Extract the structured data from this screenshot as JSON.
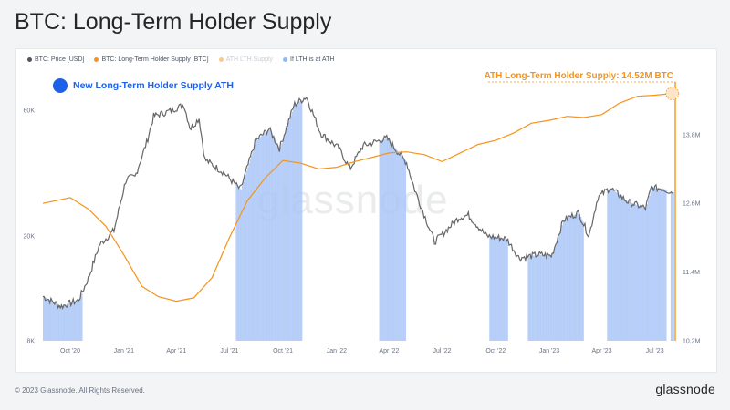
{
  "title": "BTC: Long-Term Holder Supply",
  "legend": [
    {
      "label": "BTC: Price [USD]",
      "color": "#555555",
      "faded": false
    },
    {
      "label": "BTC: Long-Term Holder Supply [BTC]",
      "color": "#f7931a",
      "faded": false
    },
    {
      "label": "ATH LTH Supply",
      "color": "#f7c98c",
      "faded": true
    },
    {
      "label": "If LTH is at ATH",
      "color": "#93b8f5",
      "faded": false
    }
  ],
  "badge_text": "New Long-Term Holder Supply ATH",
  "ath_label": "ATH Long-Term Holder Supply: 14.52M BTC",
  "watermark": "glassnode",
  "footer": {
    "copyright": "© 2023 Glassnode. All Rights Reserved.",
    "brand": "glassnode"
  },
  "colors": {
    "price": "#666666",
    "supply": "#f7931a",
    "ath_bars": "#a9c6f7",
    "ath_line": "#f7931a"
  },
  "chart_data": {
    "type": "line",
    "x_range": [
      "2020-08-15",
      "2023-08-05"
    ],
    "x_ticks": [
      {
        "label": "Oct '20",
        "date": "2020-10-01"
      },
      {
        "label": "Jan '21",
        "date": "2021-01-01"
      },
      {
        "label": "Apr '21",
        "date": "2021-04-01"
      },
      {
        "label": "Jul '21",
        "date": "2021-07-01"
      },
      {
        "label": "Oct '21",
        "date": "2021-10-01"
      },
      {
        "label": "Jan '22",
        "date": "2022-01-01"
      },
      {
        "label": "Apr '22",
        "date": "2022-04-01"
      },
      {
        "label": "Jul '22",
        "date": "2022-07-01"
      },
      {
        "label": "Oct '22",
        "date": "2022-10-01"
      },
      {
        "label": "Jan '23",
        "date": "2023-01-01"
      },
      {
        "label": "Apr '23",
        "date": "2023-04-01"
      },
      {
        "label": "Jul '23",
        "date": "2023-07-01"
      }
    ],
    "y_left": {
      "scale": "log",
      "range": [
        8000,
        80000
      ],
      "ticks": [
        {
          "label": "8K",
          "value": 8000
        },
        {
          "label": "20K",
          "value": 20000
        },
        {
          "label": "60K",
          "value": 60000
        }
      ]
    },
    "y_right": {
      "range": [
        10200000,
        14800000
      ],
      "ticks": [
        {
          "label": "10.2M",
          "value": 10200000
        },
        {
          "label": "11.4M",
          "value": 11400000
        },
        {
          "label": "12.6M",
          "value": 12600000
        },
        {
          "label": "13.8M",
          "value": 13800000
        }
      ]
    },
    "price_series": {
      "name": "BTC: Price [USD]",
      "points": [
        [
          "2020-08-15",
          11800
        ],
        [
          "2020-09-15",
          10800
        ],
        [
          "2020-10-15",
          11400
        ],
        [
          "2020-11-01",
          13800
        ],
        [
          "2020-11-20",
          18500
        ],
        [
          "2020-12-15",
          21000
        ],
        [
          "2021-01-05",
          33000
        ],
        [
          "2021-01-20",
          33500
        ],
        [
          "2021-02-10",
          46000
        ],
        [
          "2021-02-21",
          57000
        ],
        [
          "2021-03-15",
          59000
        ],
        [
          "2021-04-14",
          63000
        ],
        [
          "2021-04-25",
          51000
        ],
        [
          "2021-05-10",
          56000
        ],
        [
          "2021-05-20",
          39000
        ],
        [
          "2021-06-20",
          35000
        ],
        [
          "2021-07-20",
          30000
        ],
        [
          "2021-08-15",
          46000
        ],
        [
          "2021-09-07",
          51000
        ],
        [
          "2021-09-25",
          43000
        ],
        [
          "2021-10-20",
          63000
        ],
        [
          "2021-11-10",
          67500
        ],
        [
          "2021-12-05",
          49000
        ],
        [
          "2022-01-05",
          43000
        ],
        [
          "2022-01-24",
          36000
        ],
        [
          "2022-02-15",
          44000
        ],
        [
          "2022-03-28",
          47000
        ],
        [
          "2022-05-01",
          38000
        ],
        [
          "2022-05-15",
          30000
        ],
        [
          "2022-06-18",
          19000
        ],
        [
          "2022-07-30",
          23500
        ],
        [
          "2022-08-15",
          24000
        ],
        [
          "2022-09-15",
          20000
        ],
        [
          "2022-10-20",
          19500
        ],
        [
          "2022-11-10",
          16500
        ],
        [
          "2022-12-15",
          17000
        ],
        [
          "2023-01-05",
          16800
        ],
        [
          "2023-01-25",
          23000
        ],
        [
          "2023-02-20",
          24500
        ],
        [
          "2023-03-10",
          20000
        ],
        [
          "2023-03-25",
          28000
        ],
        [
          "2023-04-15",
          30500
        ],
        [
          "2023-05-15",
          27000
        ],
        [
          "2023-06-15",
          25500
        ],
        [
          "2023-06-25",
          30500
        ],
        [
          "2023-07-15",
          30200
        ],
        [
          "2023-07-31",
          29300
        ]
      ]
    },
    "supply_series": {
      "name": "BTC: Long-Term Holder Supply [BTC]",
      "points": [
        [
          "2020-08-15",
          12600000
        ],
        [
          "2020-10-01",
          12700000
        ],
        [
          "2020-11-01",
          12500000
        ],
        [
          "2020-12-01",
          12200000
        ],
        [
          "2021-01-01",
          11700000
        ],
        [
          "2021-02-01",
          11150000
        ],
        [
          "2021-03-01",
          10970000
        ],
        [
          "2021-04-01",
          10890000
        ],
        [
          "2021-05-01",
          10950000
        ],
        [
          "2021-06-01",
          11300000
        ],
        [
          "2021-07-01",
          12000000
        ],
        [
          "2021-08-01",
          12650000
        ],
        [
          "2021-09-01",
          13050000
        ],
        [
          "2021-10-01",
          13350000
        ],
        [
          "2021-11-01",
          13300000
        ],
        [
          "2021-12-01",
          13200000
        ],
        [
          "2022-01-01",
          13230000
        ],
        [
          "2022-02-01",
          13330000
        ],
        [
          "2022-03-01",
          13400000
        ],
        [
          "2022-04-01",
          13480000
        ],
        [
          "2022-05-01",
          13500000
        ],
        [
          "2022-06-01",
          13450000
        ],
        [
          "2022-07-01",
          13330000
        ],
        [
          "2022-08-01",
          13480000
        ],
        [
          "2022-09-01",
          13630000
        ],
        [
          "2022-10-01",
          13700000
        ],
        [
          "2022-11-01",
          13830000
        ],
        [
          "2022-12-01",
          14000000
        ],
        [
          "2023-01-01",
          14050000
        ],
        [
          "2023-02-01",
          14120000
        ],
        [
          "2023-03-01",
          14100000
        ],
        [
          "2023-04-01",
          14150000
        ],
        [
          "2023-05-01",
          14350000
        ],
        [
          "2023-06-01",
          14470000
        ],
        [
          "2023-07-01",
          14490000
        ],
        [
          "2023-07-31",
          14520000
        ]
      ]
    },
    "ath_periods": {
      "name": "If LTH is at ATH",
      "ranges": [
        [
          "2020-08-15",
          "2020-10-20"
        ],
        [
          "2021-07-12",
          "2021-11-02"
        ],
        [
          "2022-03-15",
          "2022-04-28"
        ],
        [
          "2022-09-20",
          "2022-10-20"
        ],
        [
          "2022-11-25",
          "2023-02-28"
        ],
        [
          "2023-04-10",
          "2023-07-20"
        ],
        [
          "2023-07-28",
          "2023-08-02"
        ]
      ]
    },
    "ath_supply_value": 14520000
  }
}
